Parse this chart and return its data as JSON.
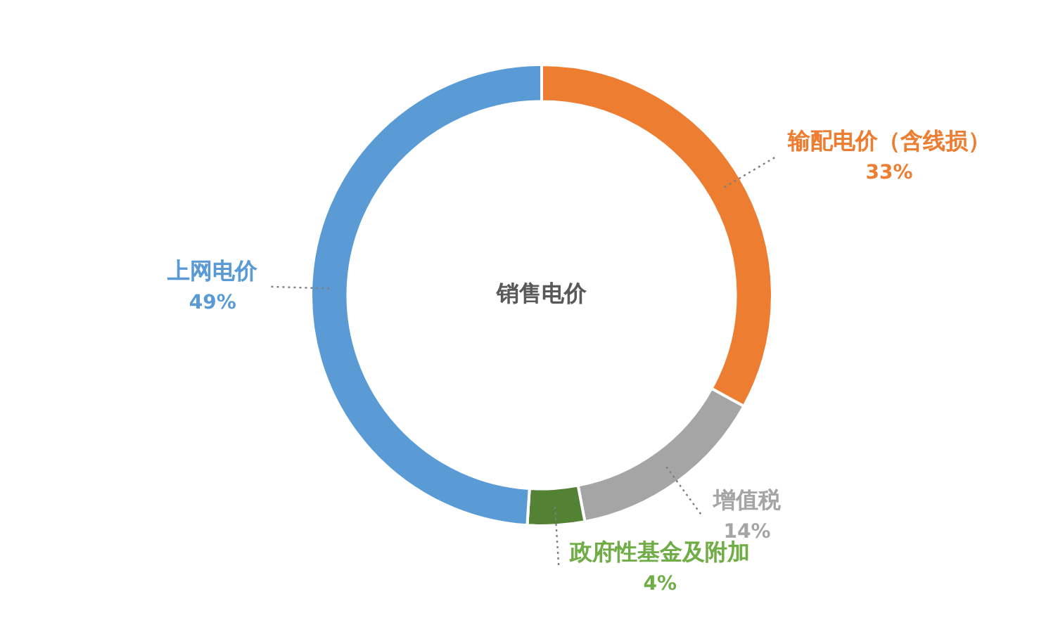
{
  "chart_data": {
    "type": "donut",
    "title": "销售电价",
    "categories": [
      "输配电价（含线损）",
      "增值税",
      "政府性基金及附加",
      "上网电价"
    ],
    "values": [
      33,
      14,
      4,
      49
    ],
    "colors": [
      "#ed7d31",
      "#a5a5a5",
      "#548235",
      "#5b9bd5"
    ],
    "value_labels": [
      "33%",
      "14%",
      "4%",
      "49%"
    ],
    "legend": false
  }
}
